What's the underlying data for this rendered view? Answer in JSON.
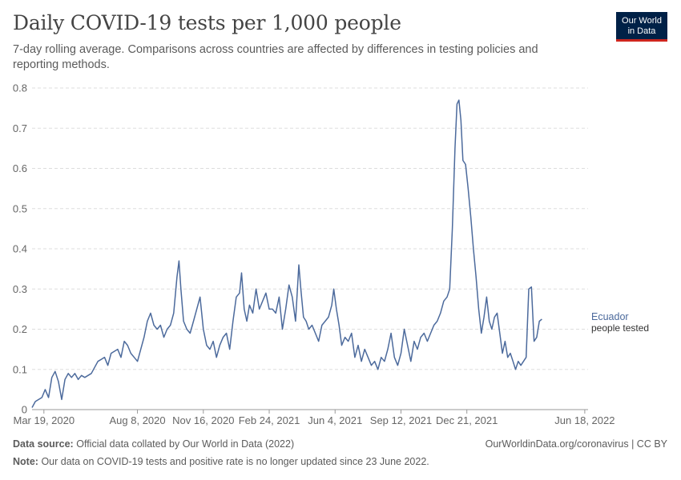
{
  "header": {
    "title": "Daily COVID-19 tests per 1,000 people",
    "subtitle": "7-day rolling average. Comparisons across countries are affected by differences in testing policies and reporting methods."
  },
  "logo": {
    "line1": "Our World",
    "line2": "in Data"
  },
  "footer": {
    "source_label": "Data source:",
    "source_text": "Official data collated by Our World in Data (2022)",
    "note_label": "Note:",
    "note_text": "Our data on COVID-19 tests and positive rate is no longer updated since 23 June 2022.",
    "attribution": "OurWorldinData.org/coronavirus | CC BY"
  },
  "colors": {
    "series": "#4c6a9c",
    "grid": "#dddddd",
    "text": "#5b5b5b"
  },
  "chart_data": {
    "type": "line",
    "title": "Daily COVID-19 tests per 1,000 people",
    "xlabel": "",
    "ylabel": "",
    "ylim": [
      0,
      0.8
    ],
    "yticks": [
      0,
      0.1,
      0.2,
      0.3,
      0.4,
      0.5,
      0.6,
      0.7,
      0.8
    ],
    "ytick_labels": [
      "0",
      "0.1",
      "0.2",
      "0.3",
      "0.4",
      "0.5",
      "0.6",
      "0.7",
      "0.8"
    ],
    "x_start_date": "2020-03-01",
    "x_end_date": "2022-06-23",
    "x_range_days": [
      0,
      844
    ],
    "xticks": [
      {
        "day": 18,
        "label": "Mar 19, 2020"
      },
      {
        "day": 160,
        "label": "Aug 8, 2020"
      },
      {
        "day": 260,
        "label": "Nov 16, 2020"
      },
      {
        "day": 360,
        "label": "Feb 24, 2021"
      },
      {
        "day": 460,
        "label": "Jun 4, 2021"
      },
      {
        "day": 560,
        "label": "Sep 12, 2021"
      },
      {
        "day": 660,
        "label": "Dec 21, 2021"
      },
      {
        "day": 839,
        "label": "Jun 18, 2022"
      }
    ],
    "grid": true,
    "series": [
      {
        "name": "Ecuador",
        "label_line2": "people tested",
        "points": [
          [
            0,
            0.005
          ],
          [
            5,
            0.02
          ],
          [
            10,
            0.025
          ],
          [
            15,
            0.03
          ],
          [
            20,
            0.05
          ],
          [
            25,
            0.03
          ],
          [
            30,
            0.08
          ],
          [
            35,
            0.095
          ],
          [
            40,
            0.07
          ],
          [
            45,
            0.025
          ],
          [
            50,
            0.075
          ],
          [
            55,
            0.09
          ],
          [
            60,
            0.08
          ],
          [
            65,
            0.09
          ],
          [
            70,
            0.075
          ],
          [
            75,
            0.085
          ],
          [
            80,
            0.08
          ],
          [
            90,
            0.09
          ],
          [
            100,
            0.12
          ],
          [
            110,
            0.13
          ],
          [
            115,
            0.11
          ],
          [
            120,
            0.14
          ],
          [
            130,
            0.15
          ],
          [
            135,
            0.13
          ],
          [
            140,
            0.17
          ],
          [
            145,
            0.16
          ],
          [
            150,
            0.14
          ],
          [
            155,
            0.13
          ],
          [
            160,
            0.12
          ],
          [
            165,
            0.15
          ],
          [
            170,
            0.18
          ],
          [
            175,
            0.22
          ],
          [
            180,
            0.24
          ],
          [
            185,
            0.21
          ],
          [
            190,
            0.2
          ],
          [
            195,
            0.21
          ],
          [
            200,
            0.18
          ],
          [
            205,
            0.2
          ],
          [
            210,
            0.21
          ],
          [
            215,
            0.24
          ],
          [
            220,
            0.33
          ],
          [
            223,
            0.37
          ],
          [
            226,
            0.3
          ],
          [
            230,
            0.22
          ],
          [
            235,
            0.2
          ],
          [
            240,
            0.19
          ],
          [
            245,
            0.22
          ],
          [
            250,
            0.25
          ],
          [
            255,
            0.28
          ],
          [
            260,
            0.2
          ],
          [
            265,
            0.16
          ],
          [
            270,
            0.15
          ],
          [
            275,
            0.17
          ],
          [
            280,
            0.13
          ],
          [
            285,
            0.16
          ],
          [
            290,
            0.18
          ],
          [
            295,
            0.19
          ],
          [
            300,
            0.15
          ],
          [
            305,
            0.22
          ],
          [
            310,
            0.28
          ],
          [
            315,
            0.29
          ],
          [
            318,
            0.34
          ],
          [
            322,
            0.25
          ],
          [
            326,
            0.22
          ],
          [
            330,
            0.26
          ],
          [
            335,
            0.24
          ],
          [
            340,
            0.3
          ],
          [
            345,
            0.25
          ],
          [
            350,
            0.27
          ],
          [
            355,
            0.29
          ],
          [
            360,
            0.25
          ],
          [
            365,
            0.25
          ],
          [
            370,
            0.24
          ],
          [
            375,
            0.28
          ],
          [
            380,
            0.2
          ],
          [
            385,
            0.25
          ],
          [
            390,
            0.31
          ],
          [
            395,
            0.28
          ],
          [
            400,
            0.22
          ],
          [
            405,
            0.36
          ],
          [
            408,
            0.3
          ],
          [
            412,
            0.23
          ],
          [
            416,
            0.22
          ],
          [
            420,
            0.2
          ],
          [
            425,
            0.21
          ],
          [
            430,
            0.19
          ],
          [
            435,
            0.17
          ],
          [
            440,
            0.21
          ],
          [
            445,
            0.22
          ],
          [
            450,
            0.23
          ],
          [
            455,
            0.26
          ],
          [
            458,
            0.3
          ],
          [
            462,
            0.25
          ],
          [
            466,
            0.21
          ],
          [
            470,
            0.16
          ],
          [
            475,
            0.18
          ],
          [
            480,
            0.17
          ],
          [
            485,
            0.19
          ],
          [
            490,
            0.13
          ],
          [
            495,
            0.16
          ],
          [
            500,
            0.12
          ],
          [
            505,
            0.15
          ],
          [
            510,
            0.13
          ],
          [
            515,
            0.11
          ],
          [
            520,
            0.12
          ],
          [
            525,
            0.1
          ],
          [
            530,
            0.13
          ],
          [
            535,
            0.12
          ],
          [
            540,
            0.15
          ],
          [
            545,
            0.19
          ],
          [
            550,
            0.13
          ],
          [
            555,
            0.11
          ],
          [
            560,
            0.14
          ],
          [
            565,
            0.2
          ],
          [
            570,
            0.16
          ],
          [
            575,
            0.12
          ],
          [
            580,
            0.17
          ],
          [
            585,
            0.15
          ],
          [
            590,
            0.18
          ],
          [
            595,
            0.19
          ],
          [
            600,
            0.17
          ],
          [
            605,
            0.19
          ],
          [
            610,
            0.21
          ],
          [
            615,
            0.22
          ],
          [
            620,
            0.24
          ],
          [
            625,
            0.27
          ],
          [
            630,
            0.28
          ],
          [
            634,
            0.3
          ],
          [
            638,
            0.45
          ],
          [
            642,
            0.65
          ],
          [
            645,
            0.76
          ],
          [
            648,
            0.77
          ],
          [
            651,
            0.72
          ],
          [
            654,
            0.62
          ],
          [
            658,
            0.61
          ],
          [
            662,
            0.55
          ],
          [
            666,
            0.48
          ],
          [
            670,
            0.4
          ],
          [
            674,
            0.33
          ],
          [
            678,
            0.25
          ],
          [
            682,
            0.19
          ],
          [
            686,
            0.23
          ],
          [
            690,
            0.28
          ],
          [
            694,
            0.22
          ],
          [
            698,
            0.2
          ],
          [
            702,
            0.23
          ],
          [
            706,
            0.24
          ],
          [
            710,
            0.19
          ],
          [
            714,
            0.14
          ],
          [
            718,
            0.17
          ],
          [
            722,
            0.13
          ],
          [
            726,
            0.14
          ],
          [
            730,
            0.12
          ],
          [
            734,
            0.1
          ],
          [
            738,
            0.12
          ],
          [
            742,
            0.11
          ],
          [
            746,
            0.12
          ],
          [
            750,
            0.13
          ],
          [
            754,
            0.3
          ],
          [
            758,
            0.305
          ],
          [
            762,
            0.17
          ],
          [
            766,
            0.18
          ],
          [
            770,
            0.22
          ],
          [
            774,
            0.225
          ]
        ]
      }
    ]
  }
}
